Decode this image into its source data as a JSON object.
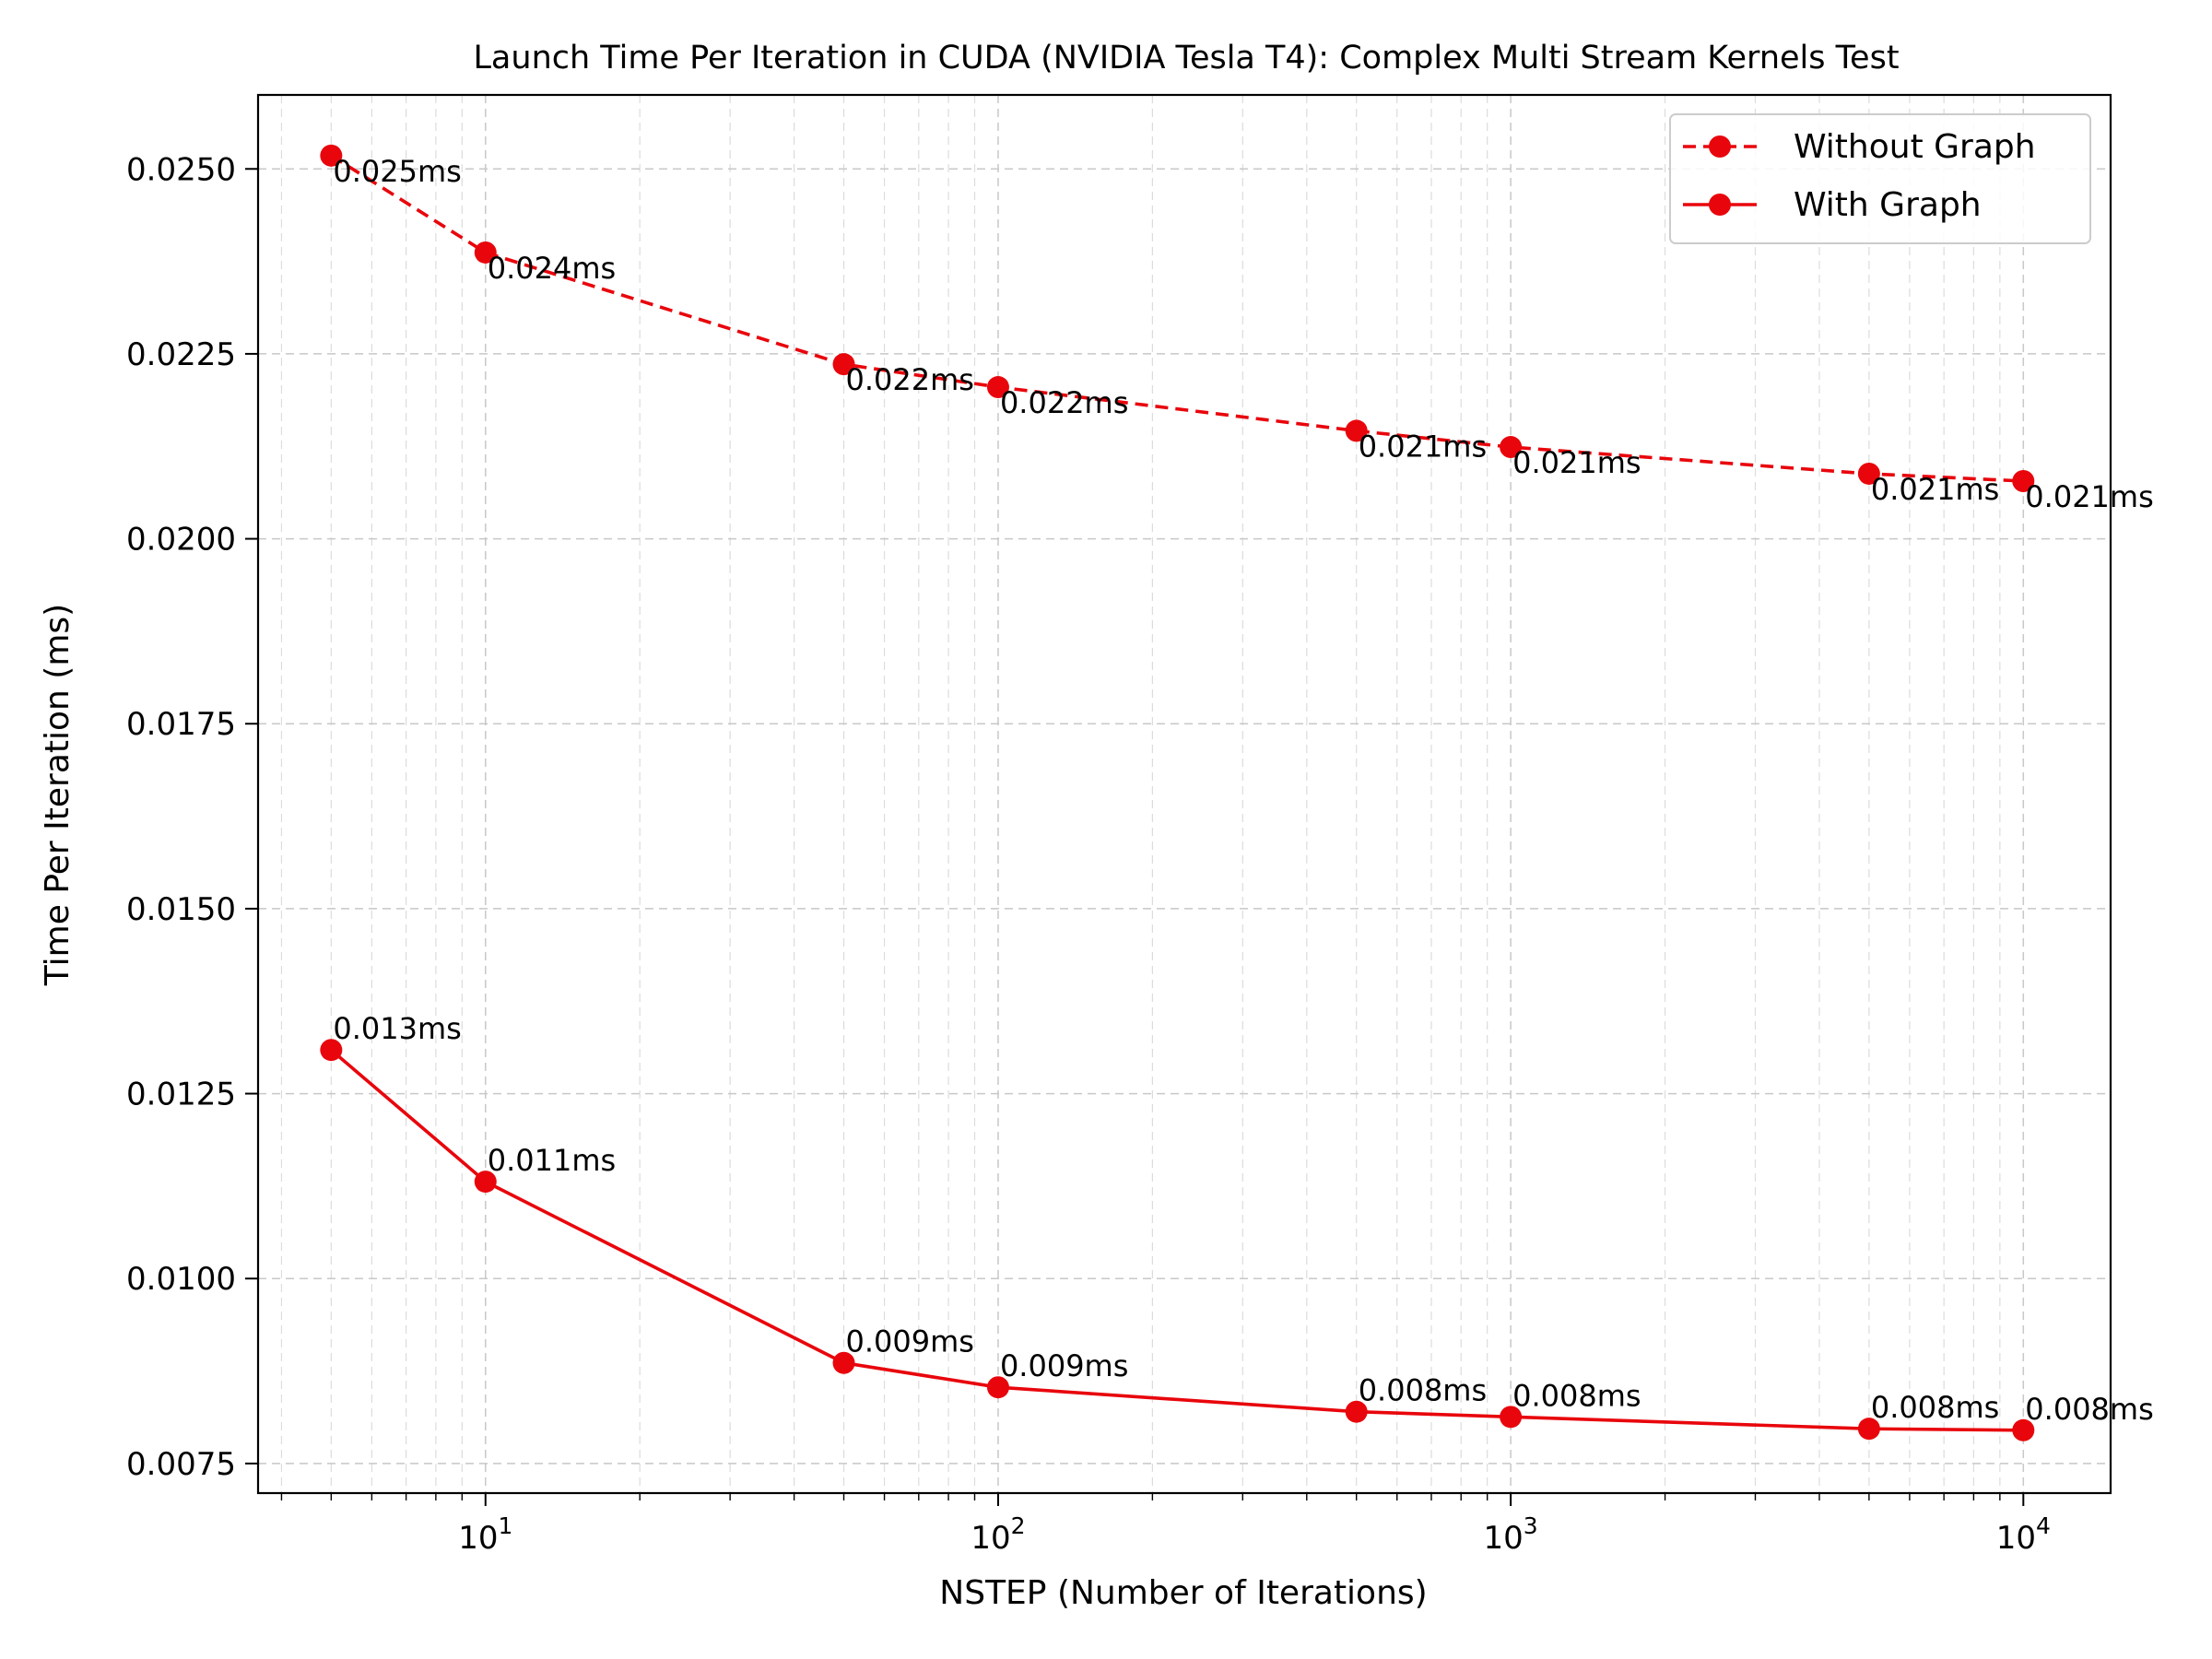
{
  "chart_data": {
    "type": "line",
    "title": "Launch Time Per Iteration in CUDA (NVIDIA Tesla T4): Complex Multi Stream Kernels Test",
    "xlabel": "NSTEP (Number of Iterations)",
    "ylabel": "Time Per Iteration (ms)",
    "xscale": "log",
    "xlim": [
      3.6,
      14800
    ],
    "ylim": [
      0.0071,
      0.026
    ],
    "xticks": [
      10,
      100,
      1000,
      10000
    ],
    "xtick_labels": [
      {
        "base": "10",
        "exp": "1"
      },
      {
        "base": "10",
        "exp": "2"
      },
      {
        "base": "10",
        "exp": "3"
      },
      {
        "base": "10",
        "exp": "4"
      }
    ],
    "yticks": [
      0.0075,
      0.01,
      0.0125,
      0.015,
      0.0175,
      0.02,
      0.0225,
      0.025
    ],
    "ytick_labels": [
      "0.0075",
      "0.0100",
      "0.0125",
      "0.0150",
      "0.0175",
      "0.0200",
      "0.0225",
      "0.0250"
    ],
    "grid": true,
    "legend_position": "top-right",
    "x": [
      5,
      10,
      50,
      100,
      500,
      1000,
      5000,
      10000
    ],
    "series": [
      {
        "name": "Without Graph",
        "style": "dashed",
        "color": "#e8060c",
        "values": [
          0.02518,
          0.02387,
          0.02236,
          0.02205,
          0.02146,
          0.02124,
          0.02088,
          0.02078
        ],
        "labels": [
          "0.025ms",
          "0.024ms",
          "0.022ms",
          "0.022ms",
          "0.021ms",
          "0.021ms",
          "0.021ms",
          "0.021ms"
        ],
        "label_position": "below"
      },
      {
        "name": "With Graph",
        "style": "solid",
        "color": "#e8060c",
        "values": [
          0.01309,
          0.01131,
          0.00886,
          0.00853,
          0.0082,
          0.00813,
          0.00797,
          0.00795
        ],
        "labels": [
          "0.013ms",
          "0.011ms",
          "0.009ms",
          "0.009ms",
          "0.008ms",
          "0.008ms",
          "0.008ms",
          "0.008ms"
        ],
        "label_position": "above"
      }
    ]
  }
}
